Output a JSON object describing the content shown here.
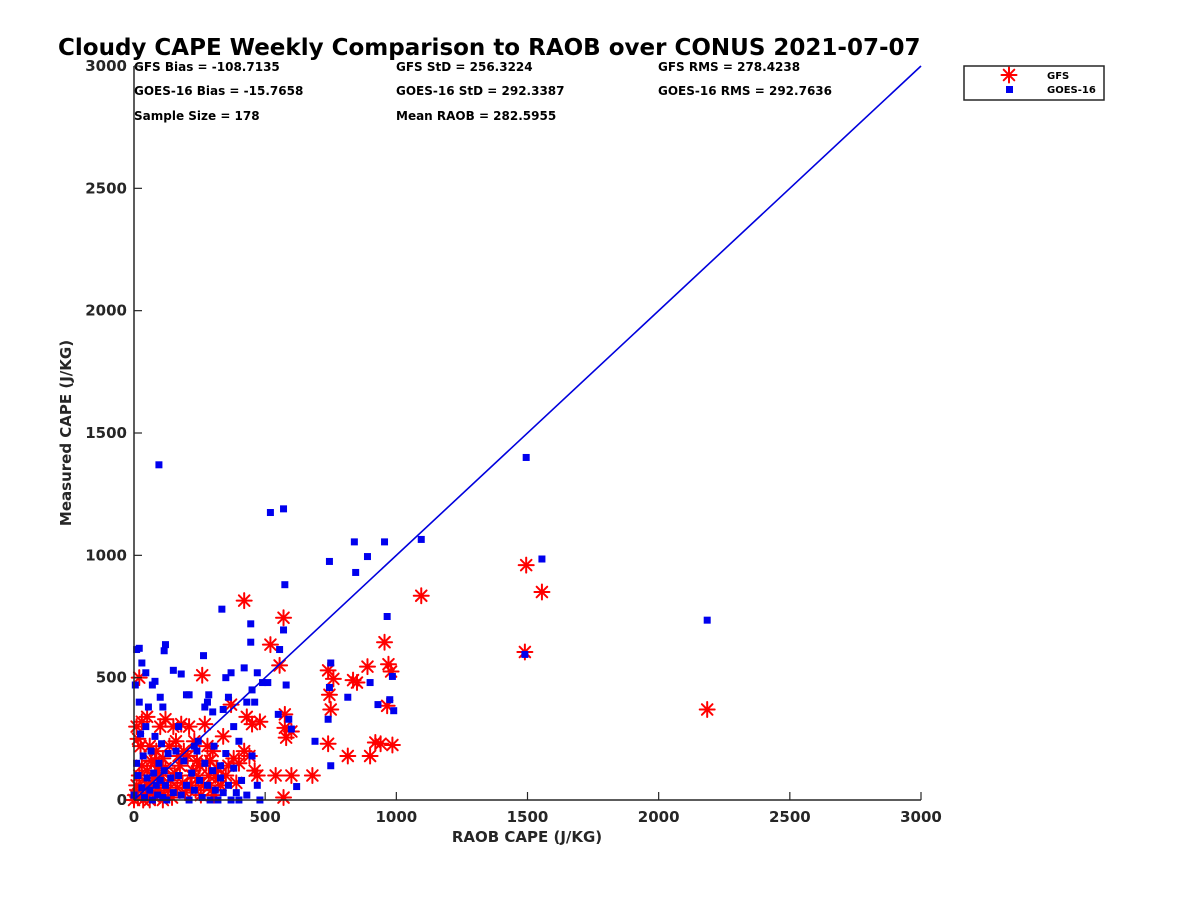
{
  "chart_data": {
    "type": "scatter",
    "title": "Cloudy CAPE Weekly Comparison to RAOB over CONUS 2021-07-07",
    "xlabel": "RAOB CAPE (J/KG)",
    "ylabel": "Measured CAPE (J/KG)",
    "xlim": [
      0,
      3000
    ],
    "ylim": [
      0,
      3000
    ],
    "x_ticks": [
      "0",
      "500",
      "1000",
      "1500",
      "2000",
      "2500",
      "3000"
    ],
    "y_ticks": [
      "0",
      "500",
      "1000",
      "1500",
      "2000",
      "2500",
      "3000"
    ],
    "grid": false,
    "legend_position": "top-right",
    "stats": [
      [
        "GFS Bias = -108.7135",
        "GFS StD = 256.3224",
        "GFS RMS = 278.4238"
      ],
      [
        "GOES-16 Bias = -15.7658",
        "GOES-16 StD = 292.3387",
        "GOES-16 RMS = 292.7636"
      ],
      [
        "Sample Size = 178",
        "Mean RAOB = 282.5955"
      ]
    ],
    "one_to_one_line": {
      "x": [
        0,
        3000
      ],
      "y": [
        0,
        3000
      ],
      "color": "#0000dd"
    },
    "series": [
      {
        "name": "GFS",
        "marker": "asterisk",
        "color": "#ff0000",
        "points": [
          [
            420,
            815
          ],
          [
            570,
            745
          ],
          [
            520,
            635
          ],
          [
            555,
            550
          ],
          [
            575,
            350
          ],
          [
            575,
            295
          ],
          [
            580,
            255
          ],
          [
            600,
            280
          ],
          [
            570,
            10
          ],
          [
            600,
            100
          ],
          [
            540,
            100
          ],
          [
            680,
            100
          ],
          [
            740,
            230
          ],
          [
            740,
            530
          ],
          [
            745,
            430
          ],
          [
            750,
            370
          ],
          [
            760,
            495
          ],
          [
            815,
            180
          ],
          [
            835,
            490
          ],
          [
            850,
            480
          ],
          [
            890,
            545
          ],
          [
            900,
            180
          ],
          [
            920,
            235
          ],
          [
            940,
            230
          ],
          [
            955,
            645
          ],
          [
            965,
            385
          ],
          [
            970,
            555
          ],
          [
            980,
            525
          ],
          [
            985,
            225
          ],
          [
            1095,
            835
          ],
          [
            1490,
            605
          ],
          [
            1495,
            960
          ],
          [
            1555,
            850
          ],
          [
            2185,
            370
          ],
          [
            20,
            500
          ],
          [
            10,
            300
          ],
          [
            15,
            250
          ],
          [
            25,
            220
          ],
          [
            30,
            320
          ],
          [
            50,
            340
          ],
          [
            60,
            220
          ],
          [
            80,
            160
          ],
          [
            90,
            120
          ],
          [
            100,
            300
          ],
          [
            110,
            170
          ],
          [
            120,
            330
          ],
          [
            140,
            80
          ],
          [
            150,
            300
          ],
          [
            160,
            240
          ],
          [
            170,
            180
          ],
          [
            180,
            310
          ],
          [
            190,
            200
          ],
          [
            210,
            300
          ],
          [
            220,
            100
          ],
          [
            230,
            240
          ],
          [
            240,
            160
          ],
          [
            250,
            140
          ],
          [
            260,
            510
          ],
          [
            270,
            310
          ],
          [
            280,
            220
          ],
          [
            290,
            160
          ],
          [
            300,
            200
          ],
          [
            310,
            100
          ],
          [
            320,
            90
          ],
          [
            330,
            60
          ],
          [
            340,
            260
          ],
          [
            350,
            100
          ],
          [
            360,
            140
          ],
          [
            370,
            390
          ],
          [
            380,
            170
          ],
          [
            390,
            70
          ],
          [
            400,
            150
          ],
          [
            420,
            200
          ],
          [
            430,
            340
          ],
          [
            440,
            180
          ],
          [
            450,
            310
          ],
          [
            460,
            120
          ],
          [
            470,
            100
          ],
          [
            480,
            320
          ],
          [
            0,
            0
          ],
          [
            5,
            20
          ],
          [
            10,
            60
          ],
          [
            15,
            10
          ],
          [
            20,
            100
          ],
          [
            25,
            40
          ],
          [
            30,
            140
          ],
          [
            35,
            0
          ],
          [
            40,
            80
          ],
          [
            45,
            20
          ],
          [
            50,
            120
          ],
          [
            55,
            60
          ],
          [
            60,
            0
          ],
          [
            65,
            160
          ],
          [
            70,
            30
          ],
          [
            75,
            90
          ],
          [
            80,
            10
          ],
          [
            85,
            200
          ],
          [
            90,
            50
          ],
          [
            95,
            140
          ],
          [
            100,
            20
          ],
          [
            105,
            100
          ],
          [
            110,
            0
          ],
          [
            115,
            60
          ],
          [
            120,
            130
          ],
          [
            130,
            40
          ],
          [
            135,
            220
          ],
          [
            145,
            10
          ],
          [
            155,
            110
          ],
          [
            165,
            50
          ],
          [
            175,
            140
          ],
          [
            185,
            70
          ],
          [
            195,
            30
          ],
          [
            205,
            180
          ],
          [
            215,
            60
          ],
          [
            225,
            120
          ],
          [
            235,
            40
          ],
          [
            245,
            90
          ],
          [
            255,
            20
          ],
          [
            265,
            60
          ],
          [
            275,
            150
          ],
          [
            285,
            100
          ],
          [
            295,
            40
          ],
          [
            305,
            20
          ],
          [
            315,
            130
          ]
        ]
      },
      {
        "name": "GOES-16",
        "marker": "square",
        "color": "#0000ee",
        "points": [
          [
            95,
            1370
          ],
          [
            1495,
            1400
          ],
          [
            520,
            1175
          ],
          [
            570,
            1190
          ],
          [
            575,
            880
          ],
          [
            745,
            975
          ],
          [
            840,
            1055
          ],
          [
            845,
            930
          ],
          [
            890,
            995
          ],
          [
            955,
            1055
          ],
          [
            1095,
            1065
          ],
          [
            1555,
            985
          ],
          [
            965,
            750
          ],
          [
            2185,
            735
          ],
          [
            335,
            780
          ],
          [
            445,
            720
          ],
          [
            445,
            645
          ],
          [
            555,
            615
          ],
          [
            570,
            695
          ],
          [
            620,
            55
          ],
          [
            1490,
            595
          ],
          [
            10,
            615
          ],
          [
            20,
            620
          ],
          [
            30,
            560
          ],
          [
            45,
            520
          ],
          [
            70,
            470
          ],
          [
            80,
            485
          ],
          [
            100,
            420
          ],
          [
            110,
            380
          ],
          [
            115,
            610
          ],
          [
            120,
            635
          ],
          [
            150,
            530
          ],
          [
            170,
            300
          ],
          [
            180,
            515
          ],
          [
            200,
            430
          ],
          [
            210,
            430
          ],
          [
            230,
            220
          ],
          [
            245,
            240
          ],
          [
            265,
            590
          ],
          [
            270,
            380
          ],
          [
            280,
            400
          ],
          [
            285,
            430
          ],
          [
            300,
            360
          ],
          [
            305,
            220
          ],
          [
            330,
            140
          ],
          [
            340,
            370
          ],
          [
            350,
            500
          ],
          [
            360,
            420
          ],
          [
            370,
            520
          ],
          [
            380,
            300
          ],
          [
            400,
            240
          ],
          [
            420,
            540
          ],
          [
            430,
            400
          ],
          [
            450,
            450
          ],
          [
            460,
            400
          ],
          [
            470,
            520
          ],
          [
            490,
            480
          ],
          [
            510,
            480
          ],
          [
            550,
            350
          ],
          [
            580,
            470
          ],
          [
            590,
            330
          ],
          [
            600,
            290
          ],
          [
            690,
            240
          ],
          [
            740,
            330
          ],
          [
            745,
            460
          ],
          [
            750,
            560
          ],
          [
            750,
            140
          ],
          [
            815,
            420
          ],
          [
            900,
            480
          ],
          [
            930,
            390
          ],
          [
            975,
            410
          ],
          [
            985,
            505
          ],
          [
            990,
            365
          ],
          [
            0,
            20
          ],
          [
            5,
            470
          ],
          [
            10,
            150
          ],
          [
            15,
            100
          ],
          [
            20,
            400
          ],
          [
            25,
            270
          ],
          [
            30,
            50
          ],
          [
            35,
            180
          ],
          [
            40,
            10
          ],
          [
            45,
            300
          ],
          [
            50,
            90
          ],
          [
            55,
            380
          ],
          [
            60,
            40
          ],
          [
            65,
            200
          ],
          [
            70,
            0
          ],
          [
            75,
            110
          ],
          [
            80,
            260
          ],
          [
            85,
            60
          ],
          [
            90,
            20
          ],
          [
            95,
            150
          ],
          [
            100,
            80
          ],
          [
            105,
            230
          ],
          [
            110,
            10
          ],
          [
            115,
            120
          ],
          [
            120,
            60
          ],
          [
            125,
            0
          ],
          [
            130,
            190
          ],
          [
            140,
            90
          ],
          [
            150,
            30
          ],
          [
            160,
            200
          ],
          [
            170,
            100
          ],
          [
            180,
            20
          ],
          [
            190,
            160
          ],
          [
            200,
            60
          ],
          [
            210,
            0
          ],
          [
            220,
            110
          ],
          [
            230,
            40
          ],
          [
            240,
            200
          ],
          [
            250,
            80
          ],
          [
            260,
            10
          ],
          [
            270,
            150
          ],
          [
            280,
            60
          ],
          [
            290,
            0
          ],
          [
            300,
            120
          ],
          [
            310,
            40
          ],
          [
            320,
            0
          ],
          [
            330,
            90
          ],
          [
            340,
            30
          ],
          [
            350,
            190
          ],
          [
            360,
            60
          ],
          [
            370,
            0
          ],
          [
            380,
            130
          ],
          [
            390,
            30
          ],
          [
            400,
            0
          ],
          [
            410,
            80
          ],
          [
            430,
            20
          ],
          [
            450,
            180
          ],
          [
            470,
            60
          ],
          [
            480,
            0
          ]
        ]
      }
    ]
  }
}
